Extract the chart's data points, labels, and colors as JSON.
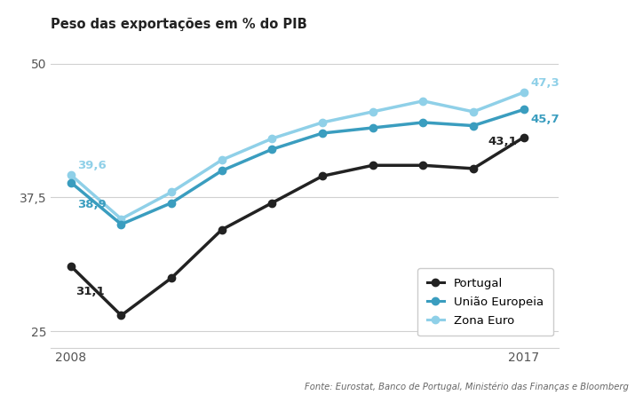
{
  "title": "Peso das exportações em % do PIB",
  "years": [
    2008,
    2009,
    2010,
    2011,
    2012,
    2013,
    2014,
    2015,
    2016,
    2017
  ],
  "portugal": [
    31.1,
    26.5,
    30.0,
    34.5,
    37.0,
    39.5,
    40.5,
    40.5,
    40.2,
    43.1
  ],
  "uniao_europeia": [
    38.9,
    35.0,
    37.0,
    40.0,
    42.0,
    43.5,
    44.0,
    44.5,
    44.2,
    45.7
  ],
  "zona_euro": [
    39.6,
    35.5,
    38.0,
    41.0,
    43.0,
    44.5,
    45.5,
    46.5,
    45.5,
    47.3
  ],
  "color_portugal": "#222222",
  "color_ue": "#3a9dbf",
  "color_ze": "#8fd0e8",
  "label_portugal": "Portugal",
  "label_ue": "União Europeia",
  "label_ze": "Zona Euro",
  "yticks": [
    25,
    37.5,
    50
  ],
  "ylim": [
    23.5,
    51.5
  ],
  "xlim_left": 2007.6,
  "xlim_right": 2017.7,
  "fonte": "Fonte: Eurostat, Banco de Portugal, Ministério das Finanças e Bloomberg",
  "annot_pt_2008": "31,1",
  "annot_ue_2008": "38,9",
  "annot_ze_2008": "39,6",
  "annot_pt_2017": "43,1",
  "annot_ue_2017": "45,7",
  "annot_ze_2017": "47,3"
}
